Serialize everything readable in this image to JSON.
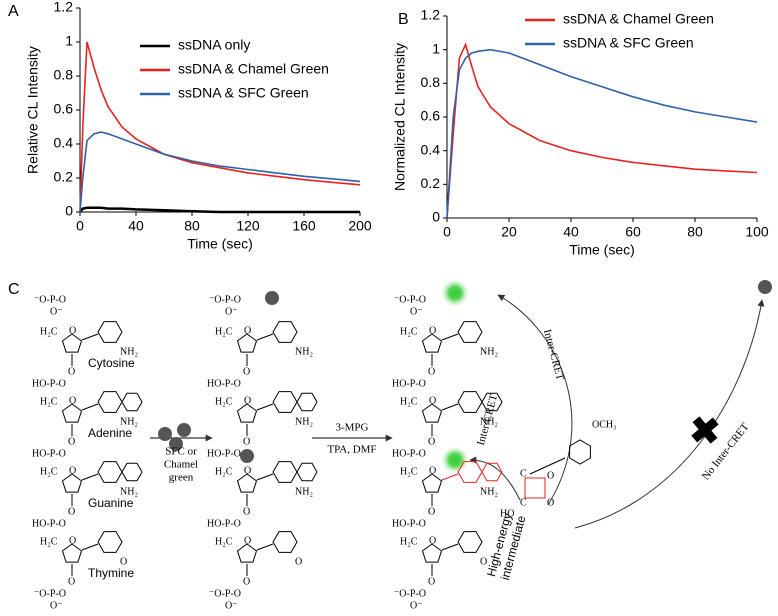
{
  "chart_data": [
    {
      "type": "line",
      "label": "A",
      "xlabel": "Time (sec)",
      "ylabel": "Relative CL Intensity",
      "x": [
        0,
        2,
        5,
        10,
        15,
        20,
        30,
        40,
        60,
        80,
        100,
        120,
        140,
        160,
        180,
        200
      ],
      "series": [
        {
          "name": "ssDNA only",
          "color": "#000000",
          "values": [
            0,
            0.02,
            0.025,
            0.025,
            0.025,
            0.02,
            0.02,
            0.015,
            0.01,
            0.005,
            0,
            0,
            0,
            0,
            0,
            0
          ]
        },
        {
          "name": "ssDNA & Chamel Green",
          "color": "#e8231f",
          "values": [
            0,
            0.5,
            1.0,
            0.85,
            0.72,
            0.62,
            0.5,
            0.43,
            0.34,
            0.29,
            0.26,
            0.23,
            0.21,
            0.19,
            0.175,
            0.16
          ]
        },
        {
          "name": "ssDNA & SFC Green",
          "color": "#2e62a8",
          "values": [
            0,
            0.2,
            0.42,
            0.46,
            0.47,
            0.46,
            0.43,
            0.4,
            0.34,
            0.3,
            0.27,
            0.25,
            0.23,
            0.21,
            0.195,
            0.18
          ]
        }
      ],
      "xlim": [
        0,
        200
      ],
      "ylim": [
        0,
        1.2
      ],
      "xticks": [
        0,
        40,
        80,
        120,
        160,
        200
      ],
      "yticks": [
        0,
        0.2,
        0.4,
        0.6,
        0.8,
        1,
        1.2
      ],
      "legend": "upper center"
    },
    {
      "type": "line",
      "label": "B",
      "xlabel": "Time (sec)",
      "ylabel": "Normalized CL Intensity",
      "x": [
        0,
        2,
        4,
        6,
        8,
        10,
        14,
        20,
        30,
        40,
        50,
        60,
        70,
        80,
        90,
        100
      ],
      "series": [
        {
          "name": "ssDNA & Chamel Green",
          "color": "#e8231f",
          "values": [
            0,
            0.5,
            0.95,
            1.03,
            0.9,
            0.78,
            0.66,
            0.56,
            0.46,
            0.4,
            0.36,
            0.33,
            0.31,
            0.29,
            0.28,
            0.27
          ]
        },
        {
          "name": "ssDNA & SFC Green",
          "color": "#2e62a8",
          "values": [
            0,
            0.6,
            0.88,
            0.95,
            0.98,
            0.99,
            1.0,
            0.98,
            0.91,
            0.84,
            0.78,
            0.72,
            0.67,
            0.63,
            0.6,
            0.57
          ]
        }
      ],
      "xlim": [
        0,
        100
      ],
      "ylim": [
        0,
        1.2
      ],
      "xticks": [
        0,
        20,
        40,
        60,
        80,
        100
      ],
      "yticks": [
        0,
        0.2,
        0.4,
        0.6,
        0.8,
        1,
        1.2
      ],
      "legend": "upper right"
    }
  ],
  "diagram": {
    "label": "C",
    "bases": [
      "Cytosine",
      "Adenine",
      "Guanine",
      "Thymine"
    ],
    "step1": [
      "SFC or",
      "Chamel",
      "green"
    ],
    "step2": [
      "3-MPG",
      "TPA, DMF"
    ],
    "transfer": "Inter-CRET",
    "no_transfer": "No Inter-CRET",
    "intermediate": [
      "High-energy",
      "intermediate"
    ],
    "substituent": "OCH₃",
    "atoms": {
      "phosphate": "⁻O-P-O",
      "o_minus": "O⁻",
      "h2c": "H₂C",
      "o": "O",
      "hop": "HO-P-O",
      "nh2": "NH₂",
      "ho": "HO",
      "c": "C"
    }
  }
}
